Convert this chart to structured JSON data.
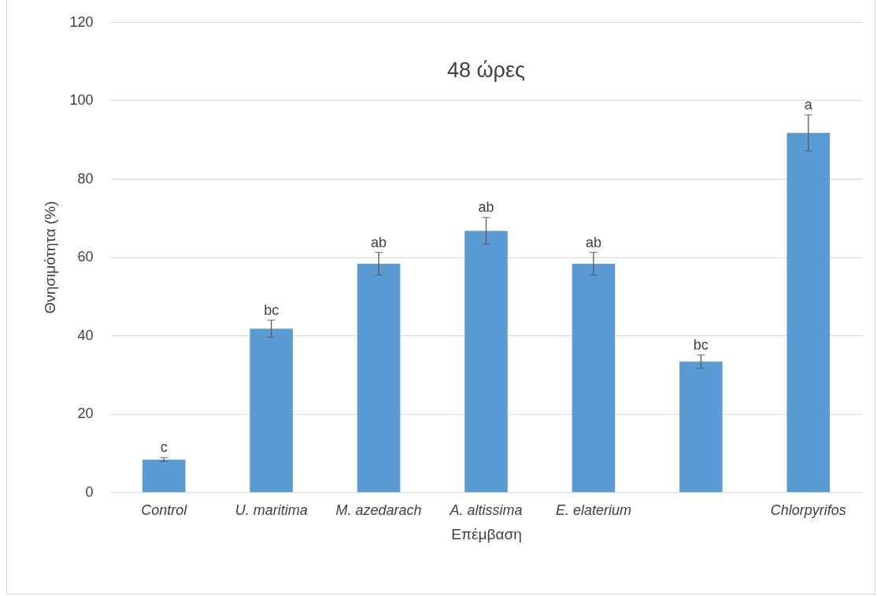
{
  "chart_data": {
    "type": "bar",
    "title": "48 ώρες",
    "xlabel": "Επέμβαση",
    "ylabel": "Θνησιμότητα (%)",
    "categories": [
      "Control",
      "U. maritima",
      "M. azedarach",
      "A. altissima",
      "E. elaterium",
      null,
      "Chlorpyrifos"
    ],
    "values": [
      8.3,
      41.7,
      58.3,
      66.7,
      58.3,
      33.3,
      91.7
    ],
    "errors": [
      0.5,
      2.2,
      2.9,
      3.4,
      2.9,
      1.7,
      4.6
    ],
    "value_labels": [
      "c",
      "bc",
      "ab",
      "ab",
      "ab",
      "bc",
      "a"
    ],
    "color": "#5b9bd5",
    "ylim": [
      0,
      120
    ],
    "yticks": [
      0,
      20,
      40,
      60,
      80,
      100,
      120
    ],
    "grid": "y"
  }
}
